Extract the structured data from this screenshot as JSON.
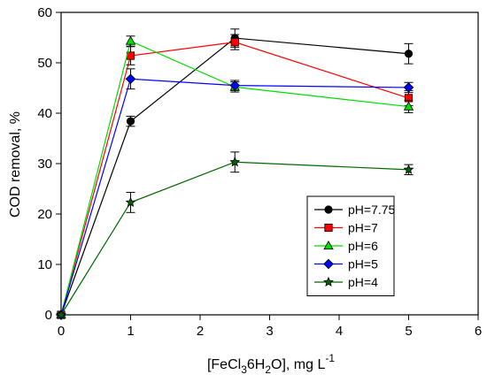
{
  "chart_data": {
    "type": "line",
    "xlabel_parts": {
      "prefix": "[FeCl",
      "sub1": "3",
      "mid": "6H",
      "sub2": "2",
      "suffix": "O], mg L",
      "sup": "-1"
    },
    "ylabel": "COD removal, %",
    "xlim": [
      0,
      6
    ],
    "ylim": [
      0,
      60
    ],
    "xticks": [
      "0",
      "1",
      "2",
      "3",
      "4",
      "5",
      "6"
    ],
    "yticks": [
      "0",
      "10",
      "20",
      "30",
      "40",
      "50",
      "60"
    ],
    "legend_position": "lower-right",
    "x": [
      0,
      1,
      2.5,
      5
    ],
    "series": [
      {
        "name": "pH=7.75",
        "color": "#000000",
        "marker": "circle",
        "values": [
          0,
          38.4,
          54.9,
          51.8
        ],
        "errors": [
          0,
          1.0,
          1.8,
          2.0
        ]
      },
      {
        "name": "pH=7",
        "color": "#ff0000",
        "marker": "square",
        "values": [
          0,
          51.4,
          54.1,
          43.0
        ],
        "errors": [
          0,
          1.8,
          1.5,
          1.5
        ]
      },
      {
        "name": "pH=6",
        "color": "#00dd00",
        "marker": "triangle",
        "values": [
          0,
          54.3,
          45.2,
          41.3
        ],
        "errors": [
          0,
          1.0,
          1.0,
          1.2
        ]
      },
      {
        "name": "pH=5",
        "color": "#0000ff",
        "marker": "diamond",
        "values": [
          0,
          46.8,
          45.5,
          45.1
        ],
        "errors": [
          0,
          2.0,
          1.0,
          1.0
        ]
      },
      {
        "name": "pH=4",
        "color": "#006600",
        "marker": "star",
        "values": [
          0,
          22.3,
          30.3,
          28.8
        ],
        "errors": [
          0,
          2.0,
          2.0,
          1.0
        ]
      }
    ]
  }
}
